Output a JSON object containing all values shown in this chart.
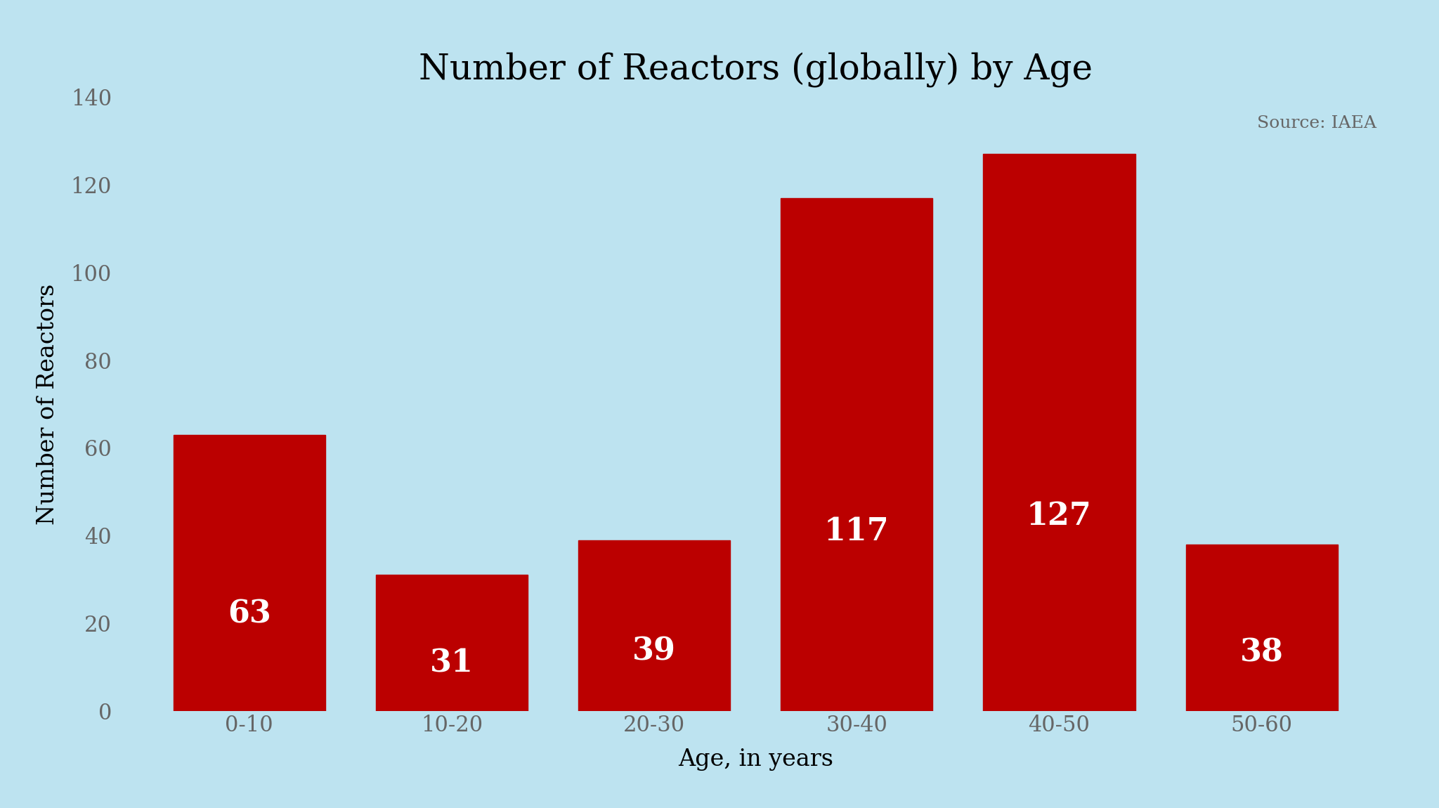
{
  "title": "Number of Reactors (globally) by Age",
  "categories": [
    "0-10",
    "10-20",
    "20-30",
    "30-40",
    "40-50",
    "50-60"
  ],
  "values": [
    63,
    31,
    39,
    117,
    127,
    38
  ],
  "bar_color": "#bb0000",
  "background_color": "#bde3f0",
  "xlabel": "Age, in years",
  "ylabel": "Number of Reactors",
  "ylim": [
    0,
    140
  ],
  "yticks": [
    0,
    20,
    40,
    60,
    80,
    100,
    120,
    140
  ],
  "title_fontsize": 36,
  "axis_label_fontsize": 24,
  "tick_fontsize": 22,
  "bar_label_fontsize": 32,
  "source_text": "Source: IAEA",
  "source_fontsize": 18,
  "bar_width": 0.75
}
